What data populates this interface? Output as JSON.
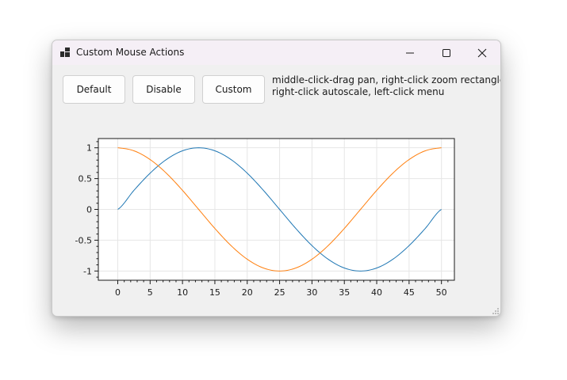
{
  "window": {
    "title": "Custom Mouse Actions",
    "icon": "app-window-icon"
  },
  "title_buttons": {
    "minimize_icon": "minimize-icon",
    "maximize_icon": "maximize-icon",
    "close_icon": "close-icon"
  },
  "buttons": {
    "default_label": "Default",
    "disable_label": "Disable",
    "custom_label": "Custom"
  },
  "help": {
    "line1": "middle-click-drag pan, right-click zoom rectangle,",
    "line2": "right-click autoscale, left-click menu"
  },
  "colors": {
    "series_sin": "#1f77b4",
    "series_cos": "#ff7f0e"
  },
  "chart_data": {
    "type": "line",
    "title": "",
    "xlabel": "",
    "ylabel": "",
    "xlim": [
      -3,
      52
    ],
    "ylim": [
      -1.15,
      1.15
    ],
    "xticks": [
      0,
      5,
      10,
      15,
      20,
      25,
      30,
      35,
      40,
      45,
      50
    ],
    "yticks": [
      1,
      0.5,
      0,
      -0.5,
      -1
    ],
    "ytick_labels": [
      "1",
      "0.5",
      "0",
      "-0.5",
      "-1"
    ],
    "grid": true,
    "legend": "none",
    "series": [
      {
        "x": [
          0,
          2.5,
          5,
          7.5,
          10,
          12.5,
          15,
          17.5,
          20,
          22.5,
          25,
          27.5,
          30,
          32.5,
          35,
          37.5,
          40,
          42.5,
          45,
          47.5,
          50
        ],
        "values": [
          0,
          0.309,
          0.588,
          0.809,
          0.951,
          1,
          0.951,
          0.809,
          0.588,
          0.309,
          0,
          -0.309,
          -0.588,
          -0.809,
          -0.951,
          -1,
          -0.951,
          -0.809,
          -0.588,
          -0.309,
          0
        ]
      },
      {
        "x": [
          0,
          2.5,
          5,
          7.5,
          10,
          12.5,
          15,
          17.5,
          20,
          22.5,
          25,
          27.5,
          30,
          32.5,
          35,
          37.5,
          40,
          42.5,
          45,
          47.5,
          50
        ],
        "values": [
          1,
          0.951,
          0.809,
          0.588,
          0.309,
          0,
          -0.309,
          -0.588,
          -0.809,
          -0.951,
          -1,
          -0.951,
          -0.809,
          -0.588,
          -0.309,
          0,
          0.309,
          0.588,
          0.809,
          0.951,
          1
        ]
      }
    ]
  }
}
